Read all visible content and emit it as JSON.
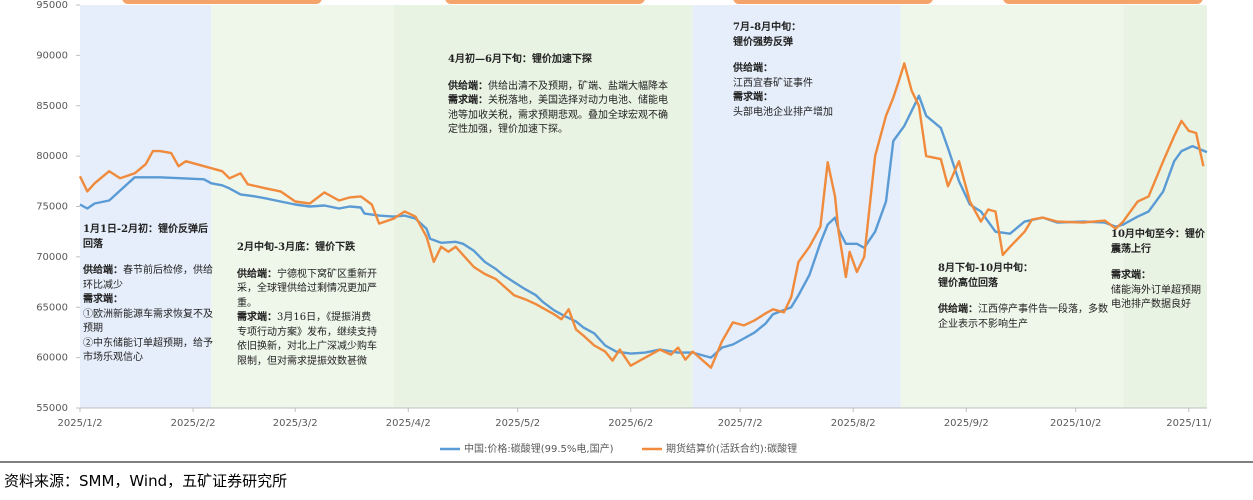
{
  "chart_data": {
    "type": "line",
    "source": "资料来源：SMM，Wind，五矿证券研究所",
    "ylim": [
      55000,
      95000
    ],
    "yticks": [
      55000,
      60000,
      65000,
      70000,
      75000,
      80000,
      85000,
      90000,
      95000
    ],
    "xlim": [
      "2025/1/2",
      "2025/11/7"
    ],
    "xticks": [
      {
        "value": "2025/1/2",
        "label": "2025/1/2"
      },
      {
        "value": "2025/2/2",
        "label": "2025/2/2"
      },
      {
        "value": "2025/3/2",
        "label": "2025/3/2"
      },
      {
        "value": "2025/4/2",
        "label": "2025/4/2"
      },
      {
        "value": "2025/5/2",
        "label": "2025/5/2"
      },
      {
        "value": "2025/6/2",
        "label": "2025/6/2"
      },
      {
        "value": "2025/7/2",
        "label": "2025/7/2"
      },
      {
        "value": "2025/8/2",
        "label": "2025/8/2"
      },
      {
        "value": "2025/9/2",
        "label": "2025/9/2"
      },
      {
        "value": "2025/10/2",
        "label": "2025/10/2"
      },
      {
        "value": "2025/11/2",
        "label": "2025/11/"
      }
    ],
    "phases": [
      {
        "start": "2025/1/2",
        "end": "2025/2/7",
        "color": "#e5eefa"
      },
      {
        "start": "2025/2/7",
        "end": "2025/3/29",
        "color": "#eff6ea"
      },
      {
        "start": "2025/3/29",
        "end": "2025/6/19",
        "color": "#e9f3e3"
      },
      {
        "start": "2025/6/19",
        "end": "2025/8/15",
        "color": "#e5eefa"
      },
      {
        "start": "2025/8/15",
        "end": "2025/10/15",
        "color": "#eff6ea"
      },
      {
        "start": "2025/10/15",
        "end": "2025/11/7",
        "color": "#e9f3e3"
      }
    ],
    "series": [
      {
        "name": "中国:价格:碳酸锂(99.5%电,国产)",
        "color": "#5b9bd5",
        "x": [
          "2025/1/2",
          "2025/1/4",
          "2025/1/6",
          "2025/1/10",
          "2025/1/17",
          "2025/1/24",
          "2025/2/5",
          "2025/2/7",
          "2025/2/10",
          "2025/2/12",
          "2025/2/15",
          "2025/2/19",
          "2025/2/22",
          "2025/2/26",
          "2025/3/2",
          "2025/3/6",
          "2025/3/10",
          "2025/3/14",
          "2025/3/17",
          "2025/3/20",
          "2025/3/21",
          "2025/3/25",
          "2025/3/29",
          "2025/4/1",
          "2025/4/4",
          "2025/4/7",
          "2025/4/8",
          "2025/4/11",
          "2025/4/15",
          "2025/4/17",
          "2025/4/20",
          "2025/4/23",
          "2025/4/26",
          "2025/4/28",
          "2025/5/1",
          "2025/5/4",
          "2025/5/7",
          "2025/5/9",
          "2025/5/12",
          "2025/5/15",
          "2025/5/18",
          "2025/5/20",
          "2025/5/23",
          "2025/5/26",
          "2025/5/29",
          "2025/6/2",
          "2025/6/6",
          "2025/6/10",
          "2025/6/15",
          "2025/6/19",
          "2025/6/24",
          "2025/6/27",
          "2025/6/30",
          "2025/7/3",
          "2025/7/6",
          "2025/7/9",
          "2025/7/11",
          "2025/7/16",
          "2025/7/18",
          "2025/7/21",
          "2025/7/24",
          "2025/7/26",
          "2025/7/28",
          "2025/7/29",
          "2025/7/31",
          "2025/8/3",
          "2025/8/5",
          "2025/8/8",
          "2025/8/11",
          "2025/8/13",
          "2025/8/16",
          "2025/8/19",
          "2025/8/20",
          "2025/8/22",
          "2025/8/26",
          "2025/8/28",
          "2025/8/31",
          "2025/9/3",
          "2025/9/6",
          "2025/9/10",
          "2025/9/14",
          "2025/9/18",
          "2025/9/23",
          "2025/9/27",
          "2025/10/4",
          "2025/10/10",
          "2025/10/13",
          "2025/10/15",
          "2025/10/19",
          "2025/10/22",
          "2025/10/26",
          "2025/10/29",
          "2025/10/31",
          "2025/11/3",
          "2025/11/7"
        ],
        "values": [
          75200,
          74800,
          75300,
          75600,
          77900,
          77900,
          77700,
          77300,
          77100,
          76800,
          76200,
          76000,
          75800,
          75500,
          75200,
          75000,
          75100,
          74800,
          75000,
          74900,
          74300,
          74100,
          74000,
          74100,
          73800,
          72800,
          71800,
          71400,
          71500,
          71300,
          70600,
          69500,
          68800,
          68200,
          67500,
          66800,
          66200,
          65500,
          64700,
          64100,
          63600,
          63000,
          62400,
          61200,
          60600,
          60400,
          60500,
          60800,
          60500,
          60500,
          60000,
          61000,
          61300,
          61900,
          62500,
          63400,
          64300,
          65000,
          66200,
          68200,
          71400,
          73200,
          73900,
          72700,
          71300,
          71300,
          70900,
          72500,
          75500,
          81500,
          83000,
          85200,
          86000,
          84000,
          82800,
          80800,
          77500,
          75200,
          74500,
          72500,
          72300,
          73500,
          73900,
          73400,
          73500,
          73400,
          73000,
          73200,
          74000,
          74500,
          76500,
          79500,
          80500,
          81000,
          80400
        ]
      },
      {
        "name": "期货结算价(活跃合约):碳酸锂",
        "color": "#f08a3c",
        "x": [
          "2025/1/2",
          "2025/1/4",
          "2025/1/6",
          "2025/1/10",
          "2025/1/13",
          "2025/1/17",
          "2025/1/20",
          "2025/1/22",
          "2025/1/24",
          "2025/1/27",
          "2025/1/29",
          "2025/1/31",
          "2025/2/5",
          "2025/2/10",
          "2025/2/12",
          "2025/2/15",
          "2025/2/17",
          "2025/2/22",
          "2025/2/26",
          "2025/3/2",
          "2025/3/6",
          "2025/3/10",
          "2025/3/14",
          "2025/3/17",
          "2025/3/20",
          "2025/3/23",
          "2025/3/25",
          "2025/3/29",
          "2025/4/1",
          "2025/4/4",
          "2025/4/7",
          "2025/4/9",
          "2025/4/11",
          "2025/4/13",
          "2025/4/15",
          "2025/4/17",
          "2025/4/20",
          "2025/4/23",
          "2025/4/26",
          "2025/5/1",
          "2025/5/4",
          "2025/5/7",
          "2025/5/12",
          "2025/5/14",
          "2025/5/16",
          "2025/5/18",
          "2025/5/20",
          "2025/5/23",
          "2025/5/26",
          "2025/5/28",
          "2025/5/30",
          "2025/6/2",
          "2025/6/6",
          "2025/6/10",
          "2025/6/13",
          "2025/6/15",
          "2025/6/17",
          "2025/6/19",
          "2025/6/24",
          "2025/6/27",
          "2025/6/30",
          "2025/7/3",
          "2025/7/6",
          "2025/7/9",
          "2025/7/11",
          "2025/7/14",
          "2025/7/16",
          "2025/7/18",
          "2025/7/21",
          "2025/7/24",
          "2025/7/26",
          "2025/7/28",
          "2025/7/29",
          "2025/7/31",
          "2025/8/1",
          "2025/8/3",
          "2025/8/5",
          "2025/8/8",
          "2025/8/11",
          "2025/8/13",
          "2025/8/15",
          "2025/8/16",
          "2025/8/18",
          "2025/8/20",
          "2025/8/22",
          "2025/8/26",
          "2025/8/28",
          "2025/8/31",
          "2025/9/3",
          "2025/9/6",
          "2025/9/8",
          "2025/9/10",
          "2025/9/12",
          "2025/9/14",
          "2025/9/18",
          "2025/9/20",
          "2025/9/23",
          "2025/9/27",
          "2025/10/4",
          "2025/10/10",
          "2025/10/13",
          "2025/10/15",
          "2025/10/19",
          "2025/10/22",
          "2025/10/26",
          "2025/10/29",
          "2025/10/31",
          "2025/11/2",
          "2025/11/4",
          "2025/11/6"
        ],
        "values": [
          78000,
          76500,
          77300,
          78500,
          77800,
          78300,
          79200,
          80500,
          80500,
          80300,
          79000,
          79500,
          79000,
          78500,
          77800,
          78300,
          77200,
          76800,
          76500,
          75500,
          75300,
          76400,
          75600,
          75900,
          76000,
          75200,
          73300,
          73800,
          74500,
          74000,
          72000,
          69500,
          71000,
          70500,
          71000,
          70200,
          69000,
          68300,
          67800,
          66200,
          65800,
          65300,
          64300,
          63800,
          64800,
          62800,
          62200,
          61200,
          60600,
          59700,
          60800,
          59200,
          60000,
          60800,
          60300,
          61000,
          59800,
          60600,
          59000,
          61600,
          63500,
          63200,
          63700,
          64400,
          64800,
          64500,
          66000,
          69500,
          71000,
          73000,
          79400,
          76000,
          72500,
          68000,
          70500,
          68500,
          70000,
          80000,
          84000,
          85800,
          88000,
          89200,
          86500,
          85000,
          80000,
          79700,
          77000,
          79500,
          75500,
          73500,
          74700,
          74500,
          70200,
          71000,
          72500,
          73700,
          73900,
          73500,
          73400,
          73600,
          72800,
          73500,
          75500,
          76000,
          79500,
          82000,
          83500,
          82500,
          82300,
          79000
        ]
      }
    ],
    "annotations": [
      {
        "title": [
          "1月1日-2月初：锂价反弹后回落"
        ],
        "blocks": [
          {
            "label": "供给端：",
            "lines": [
              "春节前后检修，供给环比减少"
            ]
          },
          {
            "label": "需求端：",
            "lines": [
              "①欧洲新能源车需求恢复不及预期",
              "②中东储能订单超预期，给予市场乐观信心"
            ]
          }
        ]
      },
      {
        "title": [
          "2月中旬-3月底：锂价下跌"
        ],
        "blocks": [
          {
            "label": "供给端：",
            "lines": [
              "宁德枧下窝矿区重新开采，全球锂供给过剩情况更加严重。"
            ]
          },
          {
            "label": "需求端：",
            "lines": [
              "3月16日，《提振消费专项行动方案》发布，继续支持依旧换新，对北上广深减少购车限制，但对需求提振效数甚微"
            ]
          }
        ]
      },
      {
        "title": [
          "4月初—6月下旬：锂价加速下探"
        ],
        "blocks": [
          {
            "label": "供给端：",
            "lines": [
              "供给出清不及预期，矿端、盐端大幅降本"
            ]
          },
          {
            "label": "需求端：",
            "lines": [
              "关税落地，美国选择对动力电池、储能电池等加收关税，需求预期悲观。叠加全球宏观不确定性加强，锂价加速下探。"
            ]
          }
        ]
      },
      {
        "title": [
          "7月-8月中旬：",
          "锂价强势反弹"
        ],
        "blocks": [
          {
            "label": "供给端：",
            "lines": [
              "江西宜春矿证事件"
            ]
          },
          {
            "label": "需求端：",
            "lines": [
              "头部电池企业排产增加"
            ]
          }
        ]
      },
      {
        "title": [
          "8月下旬-10月中旬：",
          "锂价高位回落"
        ],
        "blocks": [
          {
            "label": "供给端：",
            "lines": [
              "江西停产事件告一段落，多数企业表示不影响生产"
            ]
          }
        ]
      },
      {
        "title": [
          "10月中旬至今：锂价震荡上行"
        ],
        "blocks": [
          {
            "label": "需求端：",
            "lines": [
              "储能海外订单超预期",
              "电池排产数据良好"
            ]
          }
        ]
      }
    ]
  }
}
